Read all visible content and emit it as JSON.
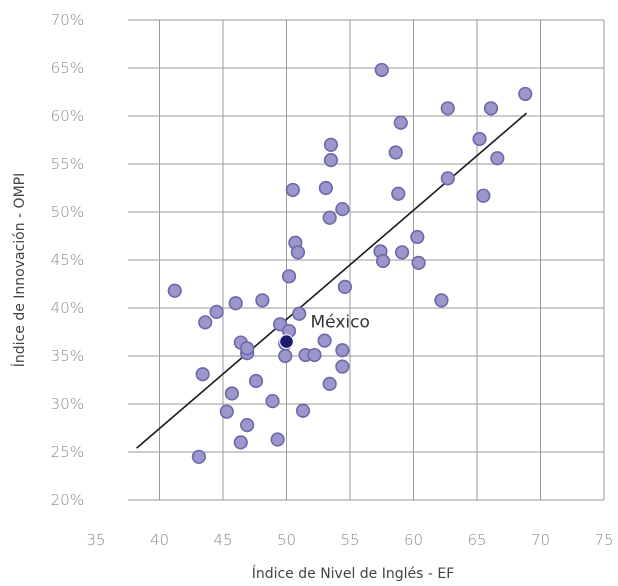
{
  "chart_data": {
    "type": "scatter",
    "xlabel": "Índice de Nivel de Inglés - EF",
    "ylabel": "Índice de Innovación - OMPI",
    "xlim": [
      35,
      75
    ],
    "ylim": [
      20,
      70
    ],
    "x_ticks": [
      35,
      40,
      45,
      50,
      55,
      60,
      65,
      70,
      75
    ],
    "x_tick_labels": [
      "35",
      "40",
      "45",
      "50",
      "55",
      "60",
      "65",
      "70",
      "75"
    ],
    "y_ticks": [
      20,
      25,
      30,
      35,
      40,
      45,
      50,
      55,
      60,
      65,
      70
    ],
    "y_tick_labels": [
      "20%",
      "25%",
      "30%",
      "35%",
      "40%",
      "45%",
      "50%",
      "55%",
      "60%",
      "65%",
      "70%"
    ],
    "grid": true,
    "colors": {
      "points": "#9b96cc",
      "point_stroke": "#6d68a8",
      "highlight": "#1d1a6e",
      "trend": "#1a1a1a"
    },
    "series": [
      {
        "points": [
          [
            41.2,
            41.8
          ],
          [
            43.1,
            24.5
          ],
          [
            43.4,
            33.1
          ],
          [
            43.6,
            38.5
          ],
          [
            44.5,
            39.6
          ],
          [
            45.3,
            29.2
          ],
          [
            45.7,
            31.1
          ],
          [
            46.0,
            40.5
          ],
          [
            46.4,
            26.0
          ],
          [
            46.4,
            36.4
          ],
          [
            46.9,
            35.3
          ],
          [
            46.9,
            35.8
          ],
          [
            46.9,
            27.8
          ],
          [
            47.6,
            32.4
          ],
          [
            48.1,
            40.8
          ],
          [
            48.9,
            30.3
          ],
          [
            49.3,
            26.3
          ],
          [
            49.5,
            38.3
          ],
          [
            49.9,
            35.0
          ],
          [
            49.9,
            36.3
          ],
          [
            50.2,
            43.3
          ],
          [
            50.2,
            37.6
          ],
          [
            50.5,
            52.3
          ],
          [
            50.7,
            46.8
          ],
          [
            50.9,
            45.8
          ],
          [
            51.0,
            39.4
          ],
          [
            51.3,
            29.3
          ],
          [
            51.5,
            35.1
          ],
          [
            52.2,
            35.1
          ],
          [
            53.0,
            36.6
          ],
          [
            53.1,
            52.5
          ],
          [
            53.4,
            49.4
          ],
          [
            53.4,
            32.1
          ],
          [
            53.5,
            57.0
          ],
          [
            53.5,
            55.4
          ],
          [
            54.4,
            35.6
          ],
          [
            54.4,
            33.9
          ],
          [
            54.4,
            50.3
          ],
          [
            54.6,
            42.2
          ],
          [
            57.4,
            45.9
          ],
          [
            57.5,
            64.8
          ],
          [
            57.6,
            44.9
          ],
          [
            58.6,
            56.2
          ],
          [
            58.8,
            51.9
          ],
          [
            59.0,
            59.3
          ],
          [
            59.1,
            45.8
          ],
          [
            60.3,
            47.4
          ],
          [
            60.4,
            44.7
          ],
          [
            62.2,
            40.8
          ],
          [
            62.7,
            60.8
          ],
          [
            62.7,
            53.5
          ],
          [
            65.2,
            57.6
          ],
          [
            65.5,
            51.7
          ],
          [
            66.1,
            60.8
          ],
          [
            66.6,
            55.6
          ],
          [
            68.8,
            62.3
          ]
        ]
      }
    ],
    "highlight": {
      "label": "México",
      "x": 50.0,
      "y": 36.5
    },
    "trendline": {
      "x1": 38.2,
      "y1": 25.4,
      "x2": 68.9,
      "y2": 60.3
    }
  }
}
